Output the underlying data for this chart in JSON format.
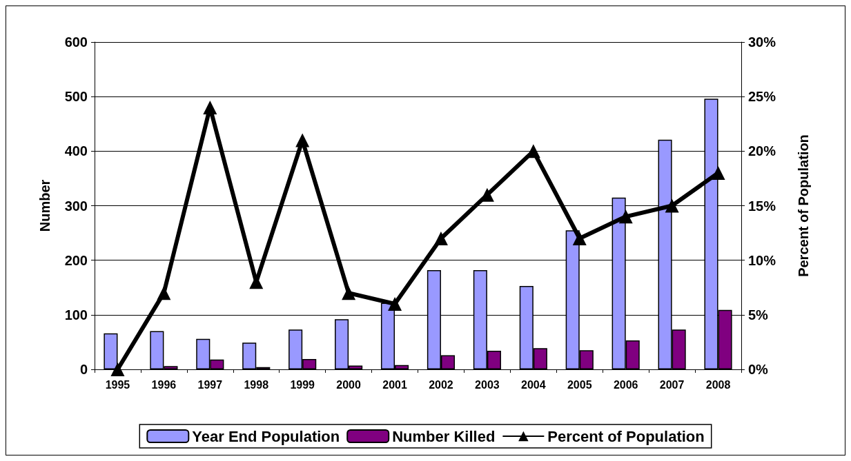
{
  "chart_data": {
    "type": "bar",
    "ylabel": "Number",
    "y2label": "Percent of Population",
    "categories": [
      "1995",
      "1996",
      "1997",
      "1998",
      "1999",
      "2000",
      "2001",
      "2002",
      "2003",
      "2004",
      "2005",
      "2006",
      "2007",
      "2008"
    ],
    "series": [
      {
        "name": "Year End Population",
        "color": "#9999ff",
        "values": [
          66,
          70,
          56,
          49,
          73,
          92,
          122,
          182,
          182,
          153,
          255,
          315,
          421,
          496
        ]
      },
      {
        "name": "Number Killed",
        "color": "#800080",
        "values": [
          0,
          6,
          18,
          4,
          19,
          7,
          8,
          26,
          34,
          39,
          35,
          53,
          73,
          109
        ]
      },
      {
        "name": "Percent of Population",
        "type": "line",
        "axis": "y2",
        "color": "#000000",
        "marker": "triangle",
        "values": [
          0,
          7,
          24,
          8,
          21,
          7,
          6,
          12,
          16,
          20,
          12,
          14,
          15,
          18
        ]
      }
    ],
    "ylim": [
      0,
      600
    ],
    "yticks": [
      0,
      100,
      200,
      300,
      400,
      500,
      600
    ],
    "y2lim": [
      0,
      30
    ],
    "y2ticks": [
      {
        "value": 0,
        "label": "0%"
      },
      {
        "value": 5,
        "label": "5%"
      },
      {
        "value": 10,
        "label": "10%"
      },
      {
        "value": 15,
        "label": "15%"
      },
      {
        "value": 20,
        "label": "20%"
      },
      {
        "value": 25,
        "label": "25%"
      },
      {
        "value": 30,
        "label": "30%"
      }
    ],
    "grid": "y",
    "legend": "bottom"
  }
}
